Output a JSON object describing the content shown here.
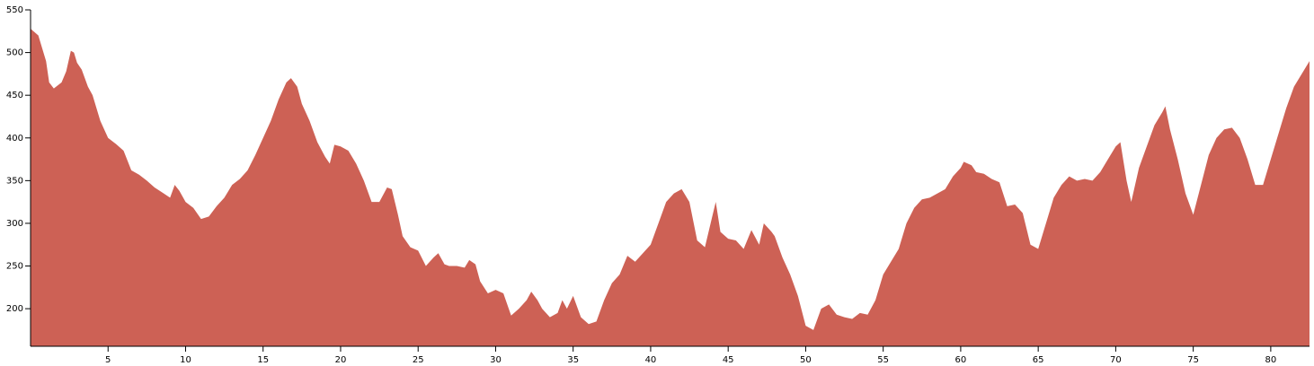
{
  "chart_data": {
    "type": "area",
    "color": "#cd6155",
    "x": [
      0,
      0.5,
      1,
      1.2,
      1.5,
      2,
      2.3,
      2.6,
      2.8,
      3.0,
      3.3,
      3.7,
      4.0,
      4.5,
      5.0,
      5.5,
      6.0,
      6.5,
      7,
      7.5,
      8,
      8.5,
      9,
      9.3,
      9.6,
      10,
      10.5,
      11,
      11.5,
      12,
      12.5,
      13,
      13.5,
      14,
      14.5,
      15,
      15.5,
      16,
      16.5,
      16.8,
      17.2,
      17.5,
      18,
      18.5,
      19,
      19.3,
      19.6,
      20,
      20.5,
      21,
      21.5,
      22,
      22.5,
      23,
      23.3,
      23.7,
      24,
      24.5,
      25,
      25.5,
      26,
      26.3,
      26.7,
      27,
      27.5,
      28,
      28.3,
      28.7,
      29,
      29.5,
      30,
      30.5,
      31,
      31.5,
      32,
      32.3,
      32.7,
      33,
      33.5,
      34,
      34.3,
      34.6,
      35,
      35.5,
      36,
      36.5,
      37,
      37.5,
      38,
      38.5,
      39,
      39.5,
      40,
      40.5,
      41,
      41.5,
      42,
      42.5,
      43,
      43.5,
      44,
      44.2,
      44.5,
      45,
      45.5,
      46,
      46.5,
      47,
      47.3,
      47.8,
      48,
      48.5,
      49,
      49.5,
      50,
      50.5,
      51,
      51.5,
      52,
      52.5,
      53,
      53.5,
      54,
      54.5,
      55,
      55.5,
      56,
      56.5,
      57,
      57.5,
      58,
      58.5,
      59,
      59.5,
      60,
      60.2,
      60.7,
      61,
      61.5,
      62,
      62.5,
      63,
      63.5,
      64,
      64.5,
      65,
      65.5,
      66,
      66.5,
      67,
      67.5,
      68,
      68.5,
      69,
      69.5,
      70,
      70.3,
      70.7,
      71,
      71.5,
      72,
      72.5,
      73,
      73.2,
      73.5,
      74,
      74.5,
      75,
      75.5,
      76,
      76.5,
      77,
      77.5,
      78,
      78.5,
      79,
      79.5,
      80,
      80.5,
      81,
      81.5,
      82,
      82.5
    ],
    "values": [
      528,
      520,
      490,
      465,
      458,
      465,
      478,
      502,
      500,
      488,
      480,
      460,
      450,
      420,
      400,
      393,
      385,
      362,
      357,
      350,
      342,
      336,
      330,
      345,
      338,
      325,
      318,
      305,
      308,
      320,
      330,
      345,
      352,
      362,
      380,
      400,
      420,
      445,
      465,
      470,
      460,
      440,
      420,
      395,
      378,
      370,
      392,
      390,
      385,
      370,
      350,
      325,
      325,
      342,
      340,
      310,
      285,
      272,
      268,
      250,
      260,
      265,
      252,
      250,
      250,
      248,
      257,
      252,
      232,
      218,
      222,
      218,
      192,
      200,
      210,
      220,
      210,
      200,
      190,
      195,
      210,
      200,
      215,
      190,
      182,
      185,
      210,
      230,
      240,
      262,
      255,
      265,
      275,
      300,
      325,
      335,
      340,
      325,
      280,
      272,
      310,
      325,
      290,
      282,
      280,
      270,
      292,
      275,
      300,
      290,
      285,
      260,
      240,
      215,
      180,
      175,
      200,
      205,
      193,
      190,
      188,
      195,
      193,
      210,
      240,
      255,
      270,
      300,
      318,
      328,
      330,
      335,
      340,
      355,
      365,
      372,
      368,
      360,
      358,
      352,
      348,
      320,
      322,
      312,
      275,
      270,
      300,
      330,
      345,
      355,
      350,
      352,
      350,
      360,
      375,
      390,
      395,
      350,
      325,
      365,
      390,
      415,
      430,
      437,
      410,
      375,
      335,
      310,
      345,
      380,
      400,
      410,
      412,
      400,
      375,
      345,
      345,
      375,
      405,
      435,
      460,
      475,
      490
    ],
    "xlim": [
      0,
      82.5
    ],
    "xticks": [
      5,
      10,
      15,
      20,
      25,
      30,
      35,
      40,
      45,
      50,
      55,
      60,
      65,
      70,
      75,
      80
    ],
    "ylim": [
      156,
      550
    ],
    "yticks": [
      200,
      250,
      300,
      350,
      400,
      450,
      500,
      550
    ]
  }
}
